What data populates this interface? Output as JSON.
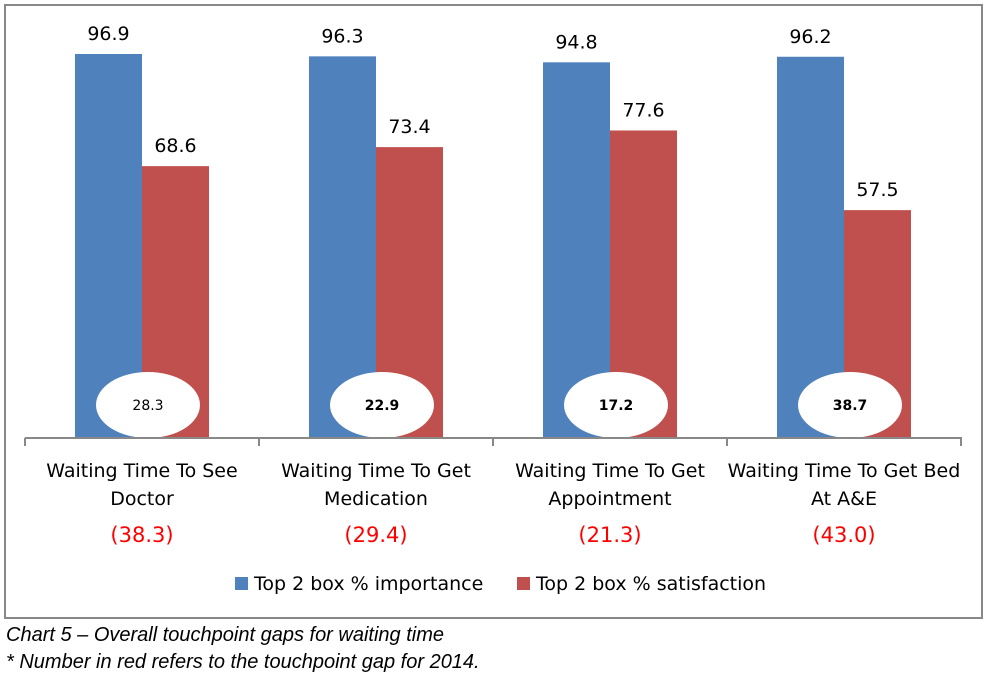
{
  "chart_data": {
    "type": "bar",
    "title": "",
    "xlabel": "",
    "ylabel": "",
    "ylim": [
      0,
      100
    ],
    "grid": false,
    "legend_position": "bottom",
    "categories": [
      [
        "Waiting Time To See",
        "Doctor"
      ],
      [
        "Waiting Time To Get",
        "Medication"
      ],
      [
        "Waiting Time To Get",
        "Appointment"
      ],
      [
        "Waiting Time To Get Bed",
        "At A&E"
      ]
    ],
    "series": [
      {
        "name": "Top 2 box % importance",
        "color": "#4f81bd",
        "values": [
          96.9,
          96.3,
          94.8,
          96.2
        ],
        "labels": [
          "96.9",
          "96.3",
          "94.8",
          "96.2"
        ]
      },
      {
        "name": "Top 2 box % satisfaction",
        "color": "#c0504d",
        "values": [
          68.6,
          73.4,
          77.6,
          57.5
        ],
        "labels": [
          "68.6",
          "73.4",
          "77.6",
          "57.5"
        ]
      }
    ],
    "gaps_current": [
      "28.3",
      "22.9",
      "17.2",
      "38.7"
    ],
    "gaps_2014": [
      "(38.3)",
      "(29.4)",
      "(21.3)",
      "(43.0)"
    ],
    "gap_2014_color": "#ff0000"
  },
  "caption": {
    "line1": "Chart 5 – Overall touchpoint gaps for waiting time",
    "line2": "* Number in red refers to the touchpoint gap for 2014."
  }
}
